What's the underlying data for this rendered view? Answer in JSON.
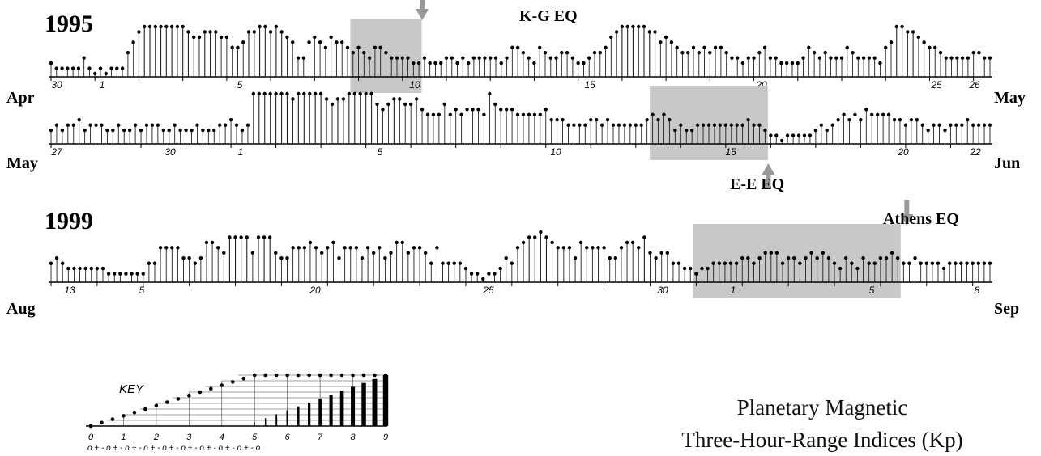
{
  "chart_data": {
    "type": "bar",
    "rows": [
      {
        "year": "1995",
        "month_start": "Apr",
        "month_end": "May",
        "day_labels": [
          "30",
          "1",
          "5",
          "10",
          "15",
          "20",
          "25",
          "26"
        ],
        "kp": [
          2,
          1,
          1,
          1,
          1,
          1,
          3,
          1,
          0,
          1,
          0,
          1,
          1,
          1,
          4,
          6,
          8,
          9,
          9,
          9,
          9,
          9,
          9,
          9,
          9,
          8,
          7,
          7,
          8,
          8,
          8,
          7,
          7,
          5,
          5,
          6,
          8,
          8,
          9,
          9,
          8,
          9,
          8,
          7,
          6,
          3,
          3,
          6,
          7,
          6,
          5,
          7,
          6,
          6,
          5,
          4,
          5,
          4,
          3,
          5,
          5,
          4,
          3,
          3,
          3,
          3,
          2,
          2,
          3,
          2,
          2,
          2,
          3,
          3,
          2,
          3,
          2,
          3,
          3,
          3,
          3,
          3,
          2,
          3,
          5,
          5,
          4,
          3,
          2,
          5,
          4,
          3,
          3,
          4,
          4,
          3,
          2,
          2,
          3,
          4,
          4,
          5,
          7,
          8,
          9,
          9,
          9,
          9,
          9,
          8,
          8,
          6,
          7,
          6,
          5,
          4,
          4,
          5,
          4,
          5,
          4,
          5,
          5,
          4,
          3,
          3,
          2,
          3,
          3,
          4,
          5,
          3,
          3,
          2,
          2,
          2,
          2,
          3,
          5,
          4,
          3,
          4,
          3,
          3,
          3,
          5,
          4,
          3,
          3,
          3,
          3,
          2,
          5,
          6,
          9,
          9,
          8,
          8,
          7,
          6,
          5,
          5,
          4,
          3,
          3,
          3,
          3,
          3,
          4,
          4,
          3,
          3
        ],
        "eq_label": "K-G EQ",
        "eq_index": 67,
        "eq_dir": "down",
        "shade_from": 55,
        "shade_to": 67
      },
      {
        "year": "",
        "month_start": "May",
        "month_end": "Jun",
        "day_labels": [
          "27",
          "30",
          "1",
          "5",
          "10",
          "15",
          "20",
          "22"
        ],
        "kp": [
          2,
          3,
          2,
          3,
          3,
          4,
          2,
          3,
          3,
          3,
          2,
          2,
          3,
          2,
          2,
          3,
          2,
          3,
          3,
          3,
          2,
          2,
          3,
          2,
          2,
          2,
          3,
          2,
          2,
          2,
          3,
          3,
          4,
          3,
          2,
          3,
          9,
          9,
          9,
          9,
          9,
          9,
          9,
          8,
          9,
          9,
          9,
          9,
          9,
          8,
          7,
          8,
          8,
          9,
          9,
          9,
          9,
          9,
          7,
          6,
          7,
          8,
          8,
          7,
          7,
          8,
          6,
          5,
          5,
          5,
          7,
          5,
          6,
          5,
          6,
          6,
          6,
          5,
          9,
          7,
          6,
          6,
          6,
          5,
          5,
          5,
          5,
          5,
          6,
          4,
          4,
          4,
          3,
          3,
          3,
          3,
          4,
          4,
          3,
          4,
          3,
          3,
          3,
          3,
          3,
          3,
          4,
          5,
          4,
          5,
          4,
          2,
          3,
          2,
          2,
          3,
          3,
          3,
          3,
          3,
          3,
          3,
          3,
          3,
          4,
          3,
          3,
          2,
          1,
          1,
          0,
          1,
          1,
          1,
          1,
          1,
          2,
          3,
          2,
          3,
          4,
          5,
          4,
          5,
          4,
          6,
          5,
          5,
          5,
          5,
          4,
          4,
          3,
          4,
          4,
          3,
          2,
          3,
          3,
          2,
          3,
          3,
          3,
          4,
          3,
          3,
          3,
          3
        ],
        "eq_label": "E-E EQ",
        "eq_index": 127,
        "eq_dir": "up",
        "shade_from": 107,
        "shade_to": 127
      },
      {
        "year": "1999",
        "month_start": "Aug",
        "month_end": "Sep",
        "day_labels": [
          "13",
          "5",
          "20",
          "25",
          "30",
          "1",
          "5",
          "8"
        ],
        "kp": [
          3,
          4,
          3,
          2,
          2,
          2,
          2,
          2,
          2,
          2,
          1,
          1,
          1,
          1,
          1,
          1,
          1,
          3,
          3,
          6,
          6,
          6,
          6,
          4,
          4,
          3,
          4,
          7,
          7,
          6,
          5,
          8,
          8,
          8,
          8,
          5,
          8,
          8,
          8,
          5,
          4,
          4,
          6,
          6,
          6,
          7,
          6,
          5,
          6,
          7,
          4,
          6,
          6,
          6,
          4,
          6,
          5,
          6,
          4,
          5,
          7,
          7,
          5,
          6,
          6,
          5,
          3,
          6,
          3,
          3,
          3,
          3,
          2,
          1,
          1,
          0,
          1,
          1,
          2,
          4,
          3,
          6,
          7,
          8,
          8,
          9,
          8,
          7,
          6,
          6,
          6,
          4,
          7,
          6,
          6,
          6,
          6,
          4,
          4,
          6,
          7,
          7,
          6,
          8,
          5,
          4,
          5,
          5,
          3,
          3,
          2,
          2,
          1,
          2,
          2,
          3,
          3,
          3,
          3,
          3,
          4,
          4,
          3,
          4,
          5,
          5,
          5,
          3,
          4,
          4,
          3,
          4,
          5,
          4,
          5,
          4,
          3,
          2,
          4,
          3,
          2,
          4,
          3,
          3,
          4,
          4,
          5,
          4,
          3,
          3,
          4,
          3,
          3,
          3,
          3,
          2,
          3,
          3,
          3,
          3,
          3,
          3,
          3,
          3
        ],
        "eq_label": "Athens EQ",
        "eq_index": 148,
        "eq_dir": "down",
        "shade_from": 112,
        "shade_to": 147
      }
    ],
    "key": {
      "label": "KEY",
      "levels": [
        "0",
        "1",
        "2",
        "3",
        "4",
        "5",
        "6",
        "7",
        "8",
        "9"
      ],
      "sublabel": "o + - o + - o + - o + - o + - o + - o + - o + - o + - o"
    },
    "title_line1": "Planetary Magnetic",
    "title_line2": "Three-Hour-Range Indices (Kp)"
  }
}
